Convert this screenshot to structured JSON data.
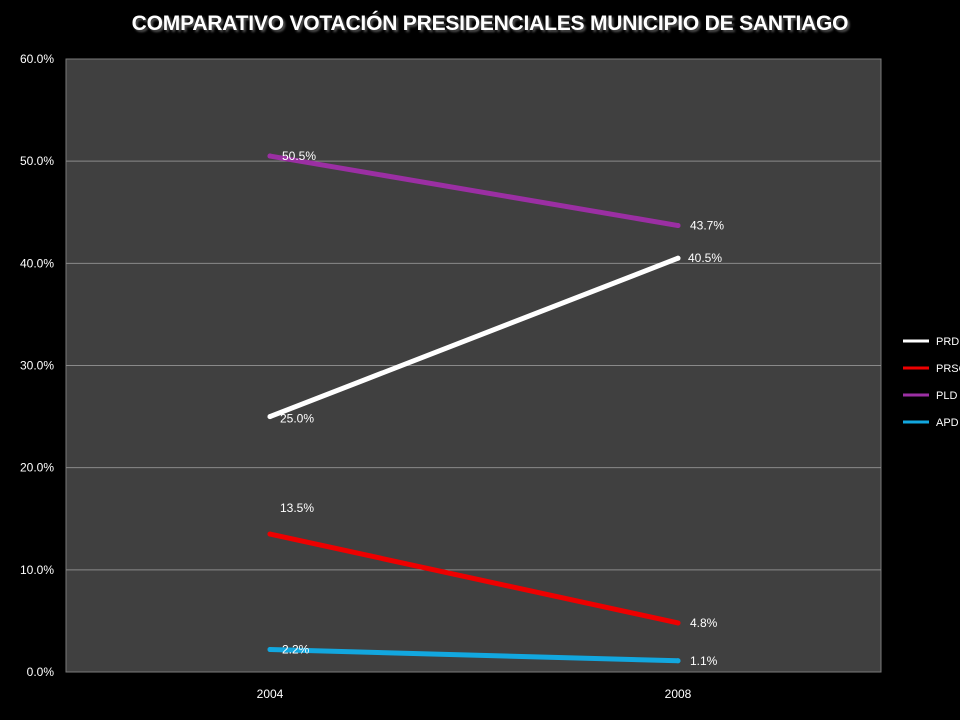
{
  "chart_data": {
    "type": "line",
    "title": "COMPARATIVO VOTACIÓN PRESIDENCIALES MUNICIPIO DE SANTIAGO",
    "xlabel": "",
    "ylabel": "",
    "categories": [
      "2004",
      "2008"
    ],
    "ylim": [
      0,
      60
    ],
    "yticks": [
      "0.0%",
      "10.0%",
      "20.0%",
      "30.0%",
      "40.0%",
      "50.0%",
      "60.0%"
    ],
    "grid": true,
    "legend_position": "right",
    "plot_background": "#404040",
    "page_background": "#000000",
    "series": [
      {
        "name": "PRD",
        "values": [
          25.0,
          40.5
        ],
        "labels": [
          "25.0%",
          "40.5%"
        ],
        "color": "#ffffff"
      },
      {
        "name": "PRSC",
        "values": [
          13.5,
          4.8
        ],
        "labels": [
          "13.5%",
          "4.8%"
        ],
        "color": "#ee0000"
      },
      {
        "name": "PLD",
        "values": [
          50.5,
          43.7
        ],
        "labels": [
          "50.5%",
          "43.7%"
        ],
        "color": "#9b2fa3"
      },
      {
        "name": "APD",
        "values": [
          2.2,
          1.1
        ],
        "labels": [
          "2.2%",
          "1.1%"
        ],
        "color": "#12a7df"
      }
    ]
  }
}
